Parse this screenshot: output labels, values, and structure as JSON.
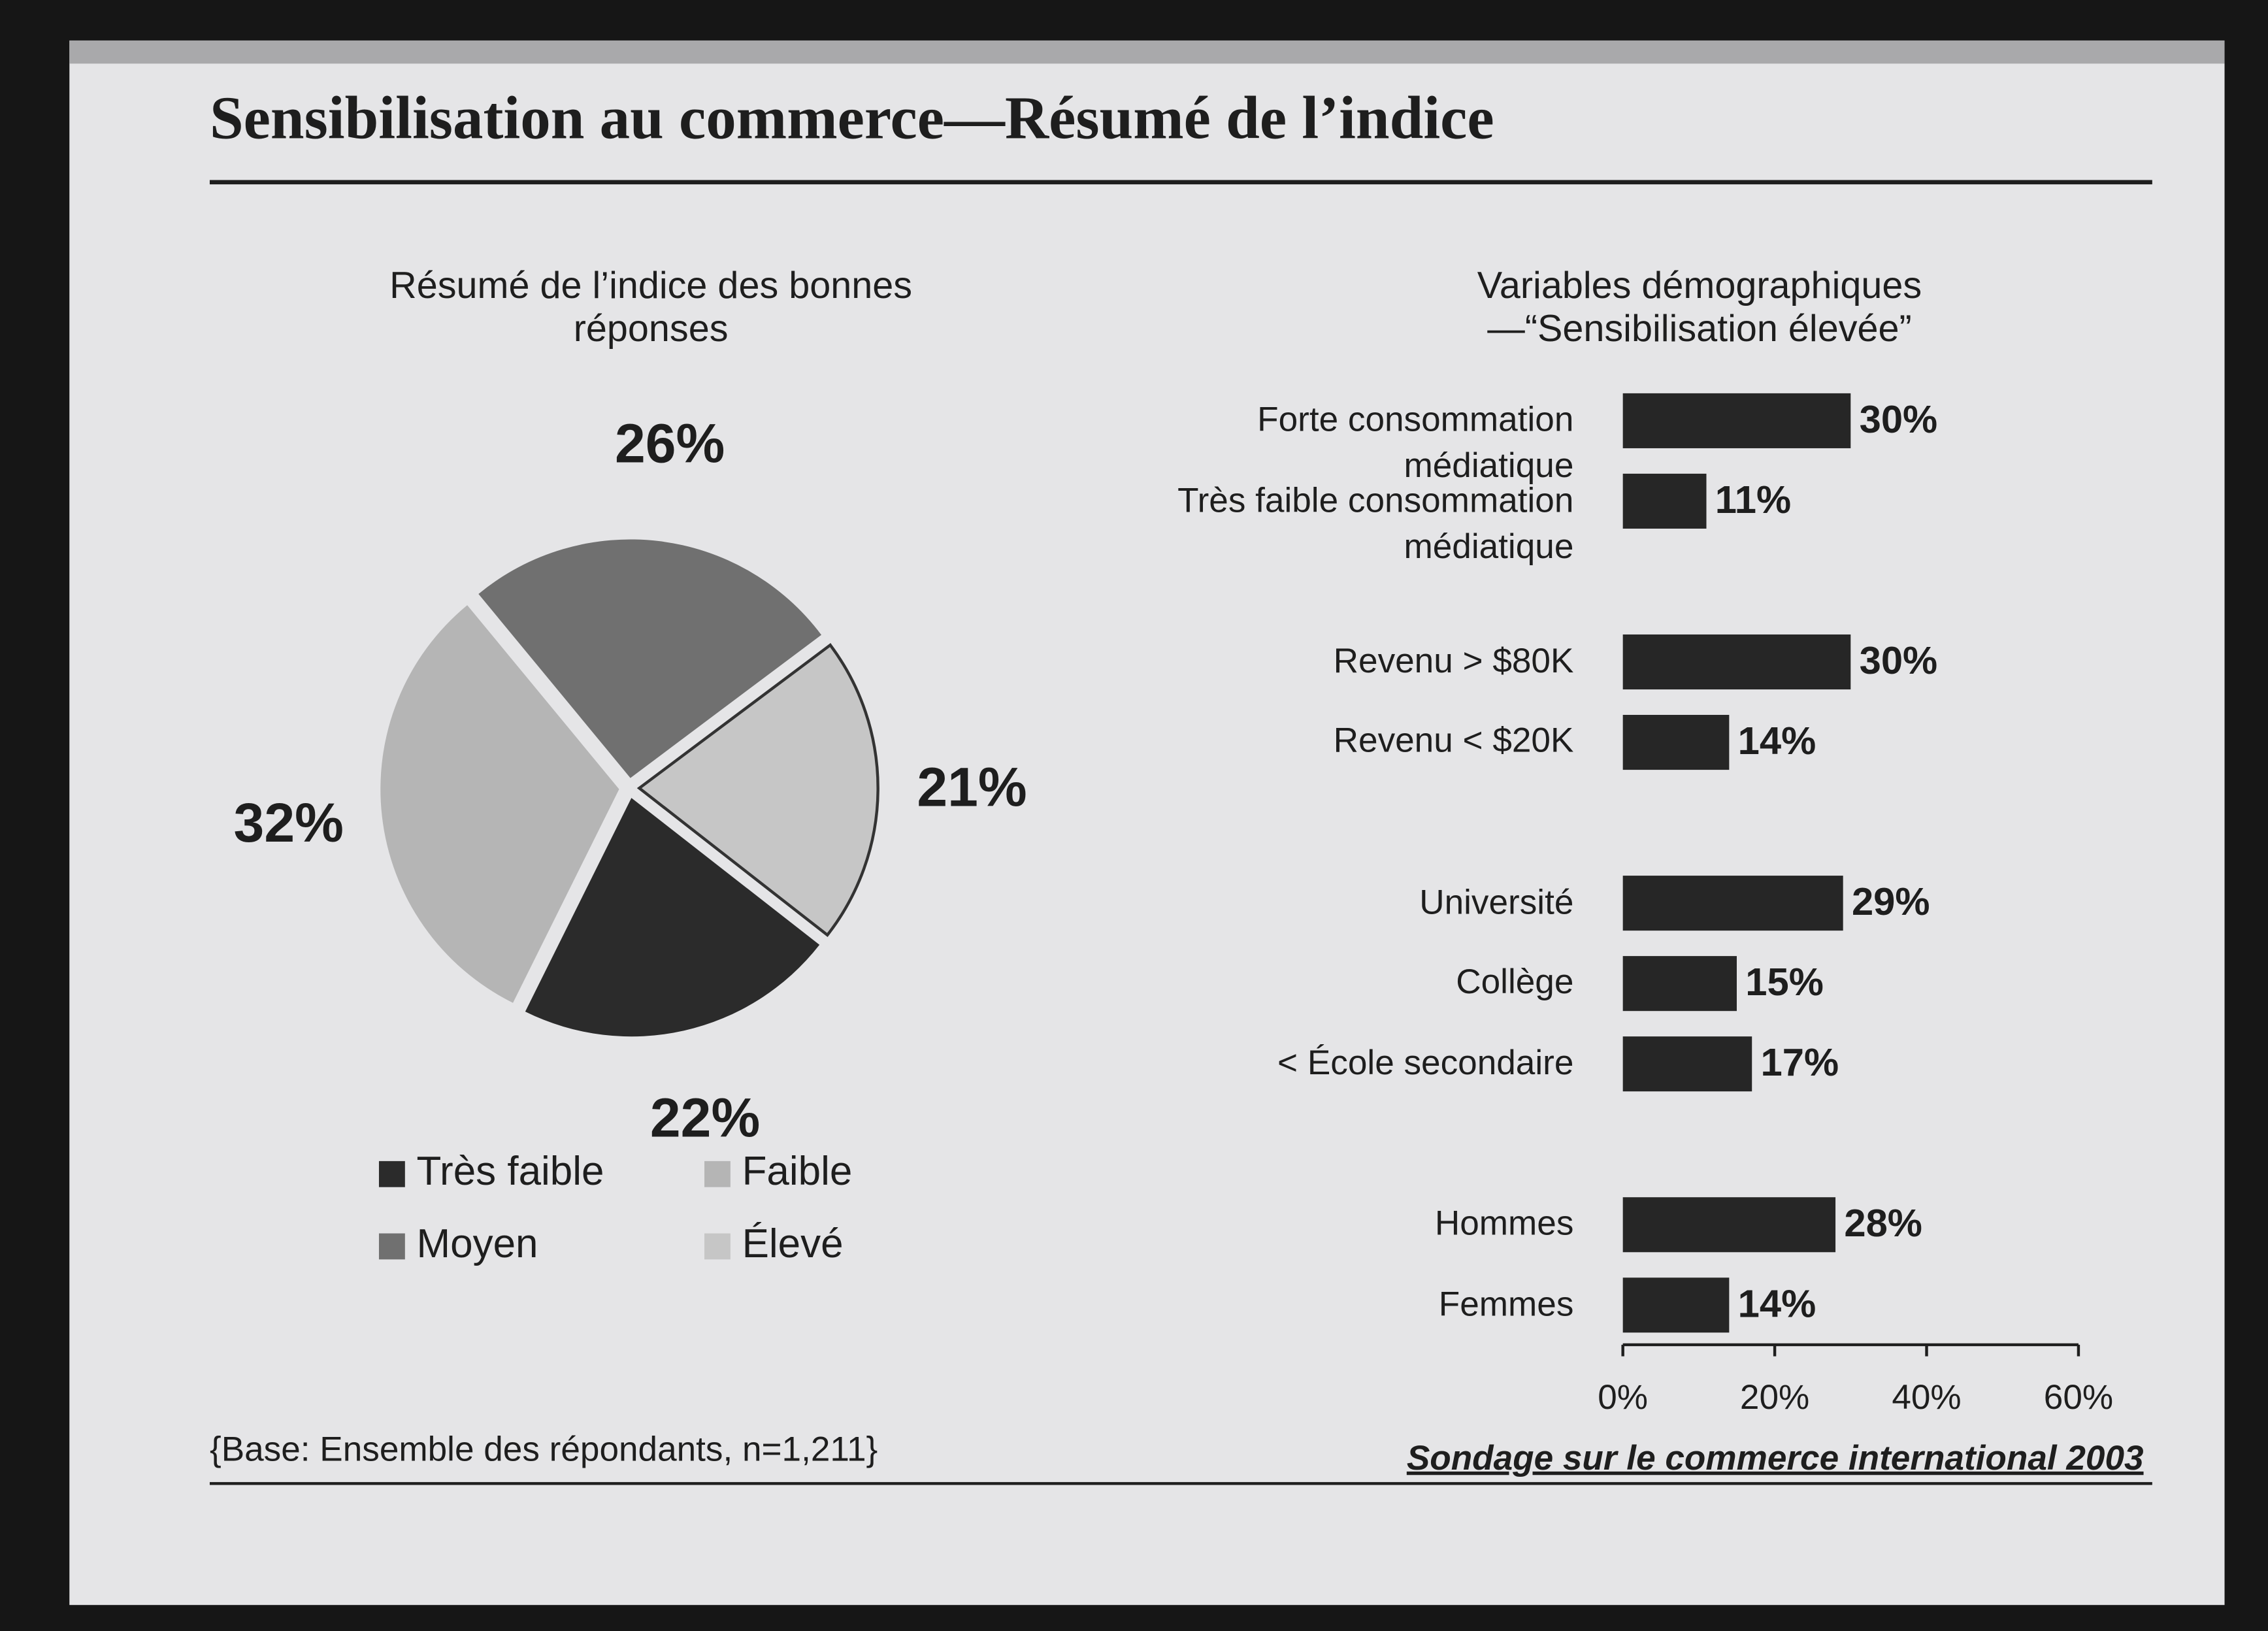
{
  "page": {
    "title": "Sensibilisation au commerce—Résumé de l’indice",
    "note": "{Base: Ensemble des répondants, n=1,211}",
    "source": "Sondage sur le commerce international 2003"
  },
  "chart_data": [
    {
      "type": "pie",
      "title": "Résumé de l’indice des bonnes réponses",
      "categories": [
        "Très faible",
        "Faible",
        "Moyen",
        "Élevé"
      ],
      "values": [
        22,
        32,
        26,
        21
      ],
      "value_labels": [
        "22%",
        "32%",
        "26%",
        "21%"
      ],
      "colors": [
        "#2b2b2b",
        "#b5b5b5",
        "#707070",
        "#c6c6c6"
      ]
    },
    {
      "type": "hbar",
      "title": "Variables démographiques—“Sensibilisation élevée”",
      "categories": [
        "Forte consommation médiatique",
        "Très faible consommation médiatique",
        "Revenu > $80K",
        "Revenu < $20K",
        "Université",
        "Collège",
        "< École secondaire",
        "Hommes",
        "Femmes"
      ],
      "values": [
        30,
        11,
        30,
        14,
        29,
        15,
        17,
        28,
        14
      ],
      "value_labels": [
        "30%",
        "11%",
        "30%",
        "14%",
        "29%",
        "15%",
        "17%",
        "28%",
        "14%"
      ],
      "color": "#262626",
      "xlim": [
        0,
        60
      ],
      "xticks": [
        {
          "value": 0,
          "label": "0%"
        },
        {
          "value": 20,
          "label": "20%"
        },
        {
          "value": 40,
          "label": "40%"
        },
        {
          "value": 60,
          "label": "60%"
        }
      ]
    }
  ]
}
